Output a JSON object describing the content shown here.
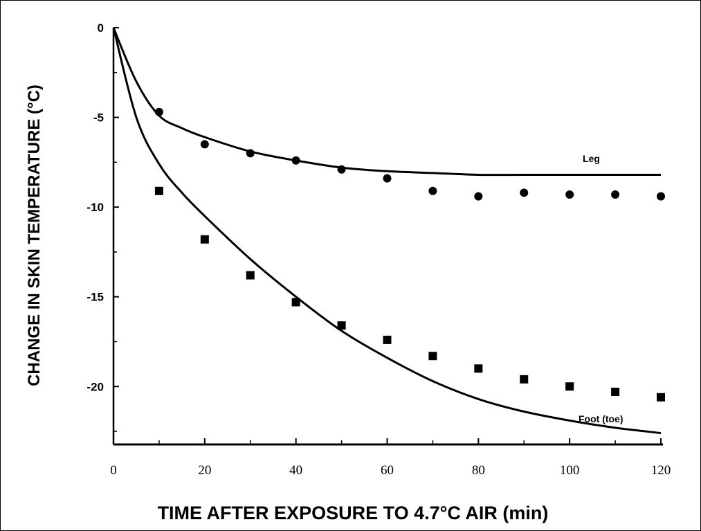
{
  "chart_data": {
    "type": "scatter",
    "xlabel": "TIME AFTER EXPOSURE TO 4.7°C AIR (min)",
    "ylabel": "CHANGE IN SKIN TEMPERATURE (°C)",
    "xlim": [
      0,
      120
    ],
    "ylim": [
      -23,
      0
    ],
    "x_ticks": [
      0,
      20,
      40,
      60,
      80,
      100,
      120
    ],
    "x_tick_labels": [
      "0",
      "20",
      "40",
      "60",
      "80",
      "100",
      "120"
    ],
    "y_ticks": [
      0,
      -5,
      -10,
      -15,
      -20
    ],
    "y_tick_labels": [
      "0",
      "-5",
      "-10",
      "-15",
      "-20"
    ],
    "grid": false,
    "series": [
      {
        "name": "Leg",
        "marker": "circle",
        "points": {
          "x": [
            10,
            20,
            30,
            40,
            50,
            60,
            70,
            80,
            90,
            100,
            110,
            120
          ],
          "y": [
            -4.7,
            -6.5,
            -7.0,
            -7.4,
            -7.9,
            -8.4,
            -9.1,
            -9.4,
            -9.2,
            -9.3,
            -9.3,
            -9.4
          ]
        },
        "curve": {
          "x": [
            0,
            5,
            10,
            15,
            20,
            30,
            40,
            50,
            60,
            70,
            80,
            90,
            100,
            110,
            120
          ],
          "y": [
            0,
            -3.0,
            -4.9,
            -5.6,
            -6.1,
            -6.9,
            -7.4,
            -7.8,
            -8.0,
            -8.1,
            -8.2,
            -8.2,
            -8.2,
            -8.2,
            -8.2
          ]
        }
      },
      {
        "name": "Foot (toe)",
        "marker": "square",
        "points": {
          "x": [
            10,
            20,
            30,
            40,
            50,
            60,
            70,
            80,
            90,
            100,
            110,
            120
          ],
          "y": [
            -9.1,
            -11.8,
            -13.8,
            -15.3,
            -16.6,
            -17.4,
            -18.3,
            -19.0,
            -19.6,
            -20.0,
            -20.3,
            -20.6
          ]
        },
        "curve": {
          "x": [
            0,
            5,
            10,
            15,
            20,
            30,
            40,
            50,
            60,
            70,
            80,
            90,
            100,
            110,
            120
          ],
          "y": [
            0,
            -5.0,
            -7.6,
            -9.2,
            -10.5,
            -12.9,
            -15.0,
            -16.9,
            -18.4,
            -19.7,
            -20.7,
            -21.4,
            -21.9,
            -22.3,
            -22.6
          ]
        }
      }
    ]
  }
}
